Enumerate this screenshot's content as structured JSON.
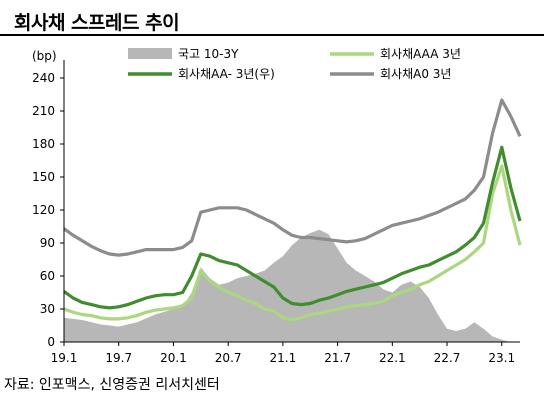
{
  "title": "회사채 스프레드 추이",
  "source": "자료: 인포맥스, 신영증권 리서치센터",
  "chart_data": {
    "type": "line",
    "ylabel": "(bp)",
    "ylim": [
      0,
      240
    ],
    "yticks": [
      0,
      30,
      60,
      90,
      120,
      150,
      180,
      210,
      240
    ],
    "xlim": [
      "2019-01",
      "2023-03"
    ],
    "xticks": [
      "19.1",
      "19.7",
      "20.1",
      "20.7",
      "21.1",
      "21.7",
      "22.1",
      "22.7",
      "23.1"
    ],
    "grid": false,
    "legend_position": "top",
    "series": [
      {
        "name": "국고 10-3Y",
        "type": "area",
        "color": "#b7b7b7",
        "points": [
          [
            "2019-01",
            22
          ],
          [
            "2019-03",
            20
          ],
          [
            "2019-05",
            16
          ],
          [
            "2019-07",
            14
          ],
          [
            "2019-09",
            18
          ],
          [
            "2019-11",
            25
          ],
          [
            "2020-01",
            30
          ],
          [
            "2020-02",
            32
          ],
          [
            "2020-03",
            45
          ],
          [
            "2020-04",
            68
          ],
          [
            "2020-05",
            58
          ],
          [
            "2020-06",
            52
          ],
          [
            "2020-07",
            54
          ],
          [
            "2020-08",
            58
          ],
          [
            "2020-09",
            60
          ],
          [
            "2020-10",
            62
          ],
          [
            "2020-11",
            65
          ],
          [
            "2020-12",
            72
          ],
          [
            "2021-01",
            78
          ],
          [
            "2021-02",
            88
          ],
          [
            "2021-03",
            95
          ],
          [
            "2021-04",
            99
          ],
          [
            "2021-05",
            102
          ],
          [
            "2021-06",
            98
          ],
          [
            "2021-07",
            85
          ],
          [
            "2021-08",
            72
          ],
          [
            "2021-09",
            65
          ],
          [
            "2021-10",
            60
          ],
          [
            "2021-11",
            55
          ],
          [
            "2021-12",
            48
          ],
          [
            "2022-01",
            45
          ],
          [
            "2022-02",
            52
          ],
          [
            "2022-03",
            55
          ],
          [
            "2022-04",
            50
          ],
          [
            "2022-05",
            40
          ],
          [
            "2022-06",
            25
          ],
          [
            "2022-07",
            12
          ],
          [
            "2022-08",
            10
          ],
          [
            "2022-09",
            12
          ],
          [
            "2022-10",
            18
          ],
          [
            "2022-11",
            12
          ],
          [
            "2022-12",
            5
          ],
          [
            "2023-01",
            2
          ],
          [
            "2023-02",
            0
          ]
        ]
      },
      {
        "name": "회사채AAA 3년",
        "color": "#a9d97c",
        "points": [
          [
            "2019-01",
            30
          ],
          [
            "2019-02",
            27
          ],
          [
            "2019-03",
            25
          ],
          [
            "2019-04",
            24
          ],
          [
            "2019-05",
            22
          ],
          [
            "2019-06",
            21
          ],
          [
            "2019-07",
            21
          ],
          [
            "2019-08",
            22
          ],
          [
            "2019-09",
            24
          ],
          [
            "2019-10",
            27
          ],
          [
            "2019-11",
            29
          ],
          [
            "2019-12",
            30
          ],
          [
            "2020-01",
            31
          ],
          [
            "2020-02",
            33
          ],
          [
            "2020-03",
            40
          ],
          [
            "2020-04",
            65
          ],
          [
            "2020-05",
            55
          ],
          [
            "2020-06",
            50
          ],
          [
            "2020-07",
            45
          ],
          [
            "2020-08",
            42
          ],
          [
            "2020-09",
            38
          ],
          [
            "2020-10",
            35
          ],
          [
            "2020-11",
            30
          ],
          [
            "2020-12",
            28
          ],
          [
            "2021-01",
            22
          ],
          [
            "2021-02",
            20
          ],
          [
            "2021-03",
            22
          ],
          [
            "2021-04",
            25
          ],
          [
            "2021-05",
            26
          ],
          [
            "2021-06",
            28
          ],
          [
            "2021-07",
            30
          ],
          [
            "2021-08",
            32
          ],
          [
            "2021-09",
            33
          ],
          [
            "2021-10",
            34
          ],
          [
            "2021-11",
            35
          ],
          [
            "2021-12",
            37
          ],
          [
            "2022-01",
            42
          ],
          [
            "2022-02",
            45
          ],
          [
            "2022-03",
            48
          ],
          [
            "2022-04",
            52
          ],
          [
            "2022-05",
            55
          ],
          [
            "2022-06",
            60
          ],
          [
            "2022-07",
            65
          ],
          [
            "2022-08",
            70
          ],
          [
            "2022-09",
            75
          ],
          [
            "2022-10",
            82
          ],
          [
            "2022-11",
            90
          ],
          [
            "2022-12",
            135
          ],
          [
            "2023-01",
            160
          ],
          [
            "2023-02",
            120
          ],
          [
            "2023-03",
            88
          ]
        ]
      },
      {
        "name": "회사채AA- 3년(우)",
        "color": "#3f8d2d",
        "points": [
          [
            "2019-01",
            46
          ],
          [
            "2019-02",
            40
          ],
          [
            "2019-03",
            36
          ],
          [
            "2019-04",
            34
          ],
          [
            "2019-05",
            32
          ],
          [
            "2019-06",
            31
          ],
          [
            "2019-07",
            32
          ],
          [
            "2019-08",
            34
          ],
          [
            "2019-09",
            37
          ],
          [
            "2019-10",
            40
          ],
          [
            "2019-11",
            42
          ],
          [
            "2019-12",
            43
          ],
          [
            "2020-01",
            43
          ],
          [
            "2020-02",
            45
          ],
          [
            "2020-03",
            60
          ],
          [
            "2020-04",
            80
          ],
          [
            "2020-05",
            78
          ],
          [
            "2020-06",
            74
          ],
          [
            "2020-07",
            72
          ],
          [
            "2020-08",
            70
          ],
          [
            "2020-09",
            65
          ],
          [
            "2020-10",
            60
          ],
          [
            "2020-11",
            55
          ],
          [
            "2020-12",
            50
          ],
          [
            "2021-01",
            40
          ],
          [
            "2021-02",
            35
          ],
          [
            "2021-03",
            34
          ],
          [
            "2021-04",
            35
          ],
          [
            "2021-05",
            38
          ],
          [
            "2021-06",
            40
          ],
          [
            "2021-07",
            43
          ],
          [
            "2021-08",
            46
          ],
          [
            "2021-09",
            48
          ],
          [
            "2021-10",
            50
          ],
          [
            "2021-11",
            52
          ],
          [
            "2021-12",
            54
          ],
          [
            "2022-01",
            58
          ],
          [
            "2022-02",
            62
          ],
          [
            "2022-03",
            65
          ],
          [
            "2022-04",
            68
          ],
          [
            "2022-05",
            70
          ],
          [
            "2022-06",
            74
          ],
          [
            "2022-07",
            78
          ],
          [
            "2022-08",
            82
          ],
          [
            "2022-09",
            88
          ],
          [
            "2022-10",
            95
          ],
          [
            "2022-11",
            108
          ],
          [
            "2022-12",
            145
          ],
          [
            "2023-01",
            177
          ],
          [
            "2023-02",
            140
          ],
          [
            "2023-03",
            110
          ]
        ]
      },
      {
        "name": "회사채A0 3년",
        "color": "#8c8c8c",
        "points": [
          [
            "2019-01",
            103
          ],
          [
            "2019-02",
            97
          ],
          [
            "2019-03",
            92
          ],
          [
            "2019-04",
            87
          ],
          [
            "2019-05",
            83
          ],
          [
            "2019-06",
            80
          ],
          [
            "2019-07",
            79
          ],
          [
            "2019-08",
            80
          ],
          [
            "2019-09",
            82
          ],
          [
            "2019-10",
            84
          ],
          [
            "2019-11",
            84
          ],
          [
            "2019-12",
            84
          ],
          [
            "2020-01",
            84
          ],
          [
            "2020-02",
            86
          ],
          [
            "2020-03",
            92
          ],
          [
            "2020-04",
            118
          ],
          [
            "2020-05",
            120
          ],
          [
            "2020-06",
            122
          ],
          [
            "2020-07",
            122
          ],
          [
            "2020-08",
            122
          ],
          [
            "2020-09",
            120
          ],
          [
            "2020-10",
            116
          ],
          [
            "2020-11",
            112
          ],
          [
            "2020-12",
            108
          ],
          [
            "2021-01",
            102
          ],
          [
            "2021-02",
            97
          ],
          [
            "2021-03",
            95
          ],
          [
            "2021-04",
            95
          ],
          [
            "2021-05",
            94
          ],
          [
            "2021-06",
            93
          ],
          [
            "2021-07",
            92
          ],
          [
            "2021-08",
            91
          ],
          [
            "2021-09",
            92
          ],
          [
            "2021-10",
            94
          ],
          [
            "2021-11",
            98
          ],
          [
            "2021-12",
            102
          ],
          [
            "2022-01",
            106
          ],
          [
            "2022-02",
            108
          ],
          [
            "2022-03",
            110
          ],
          [
            "2022-04",
            112
          ],
          [
            "2022-05",
            115
          ],
          [
            "2022-06",
            118
          ],
          [
            "2022-07",
            122
          ],
          [
            "2022-08",
            126
          ],
          [
            "2022-09",
            130
          ],
          [
            "2022-10",
            138
          ],
          [
            "2022-11",
            150
          ],
          [
            "2022-12",
            190
          ],
          [
            "2023-01",
            220
          ],
          [
            "2023-02",
            205
          ],
          [
            "2023-03",
            187
          ]
        ]
      }
    ]
  }
}
